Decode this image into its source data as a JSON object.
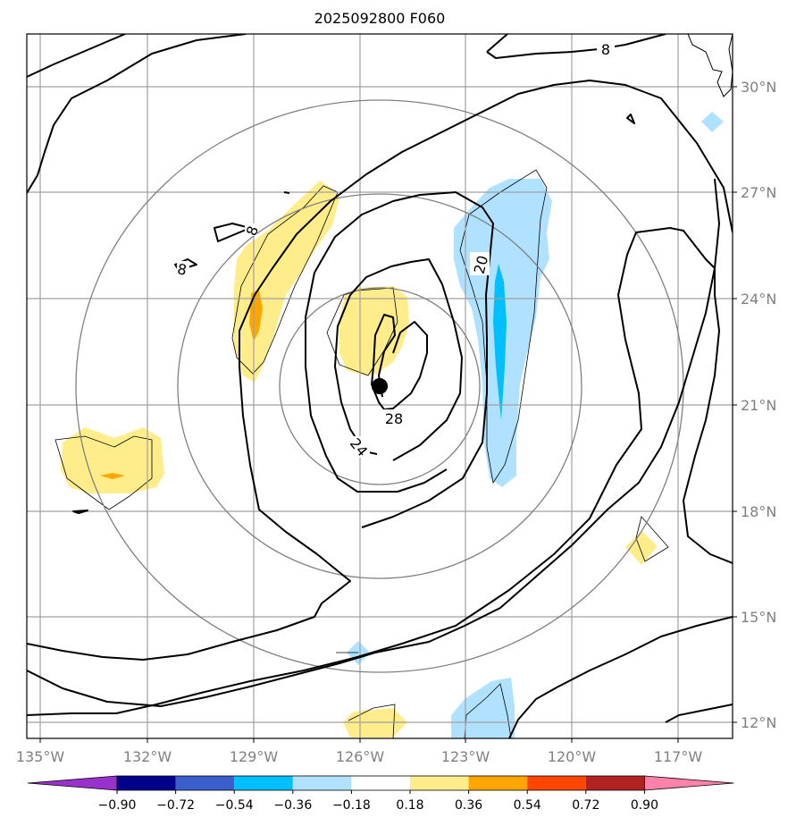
{
  "title": "2025092800 F060",
  "lon_ticks": [
    "135°W",
    "132°W",
    "129°W",
    "126°W",
    "123°W",
    "120°W",
    "117°W"
  ],
  "lat_ticks": [
    "30°N",
    "27°N",
    "24°N",
    "21°N",
    "18°N",
    "15°N",
    "12°N"
  ],
  "contour_labels": [
    "8",
    "8",
    "8",
    "20",
    "24",
    "28"
  ],
  "colorbar": {
    "labels": [
      "−0.90",
      "−0.72",
      "−0.54",
      "−0.36",
      "−0.18",
      "0.18",
      "0.36",
      "0.54",
      "0.72",
      "0.90"
    ],
    "colors": [
      "#9932CC",
      "#00008B",
      "#3A5FCD",
      "#00BFFF",
      "#B0E2FF",
      "#FFFFFF",
      "#FFEC8B",
      "#FFA500",
      "#FF4500",
      "#B22222",
      "#FF82AB"
    ]
  },
  "colors": {
    "positive_fill": "#FFEC8B",
    "strong_positive_fill": "#FFA500",
    "negative_fill": "#B0E2FF",
    "strong_negative_fill": "#00BFFF",
    "gridline": "#A0A0A0",
    "range_ring": "#808080",
    "contour": "#000000"
  },
  "storm_center": {
    "lon": -125.6,
    "lat": 21.6
  }
}
